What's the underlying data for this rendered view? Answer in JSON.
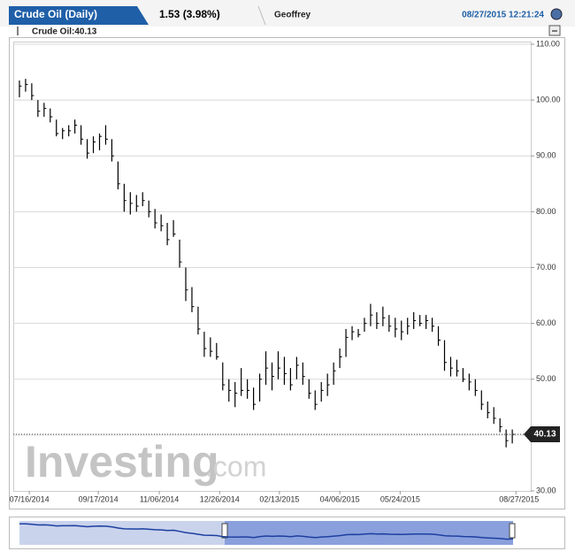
{
  "chart_data": {
    "type": "ohlc",
    "title": "Crude Oil (Daily)",
    "change": "1.53 (3.98%)",
    "user": "Geoffrey",
    "timestamp": "08/27/2015 12:21:24",
    "legend": "Crude Oil:40.13",
    "last_price": 40.13,
    "watermark": [
      "Investing",
      ".com"
    ],
    "color": "#000000",
    "grid": true,
    "xlim": [
      -1,
      83
    ],
    "ylim": [
      30,
      110
    ],
    "yticks": [
      {
        "value": 30,
        "label": "30.00"
      },
      {
        "value": 40,
        "label": "40.00"
      },
      {
        "value": 50,
        "label": "50.00"
      },
      {
        "value": 60,
        "label": "60.00"
      },
      {
        "value": 70,
        "label": "70.00"
      },
      {
        "value": 80,
        "label": "80.00"
      },
      {
        "value": 90,
        "label": "90.00"
      },
      {
        "value": 100,
        "label": "100.00"
      },
      {
        "value": 110,
        "label": "110.00"
      }
    ],
    "xticks": [
      {
        "value": 1.6,
        "label": "07/16/2014"
      },
      {
        "value": 12.8,
        "label": "09/17/2014"
      },
      {
        "value": 22.7,
        "label": "11/06/2014"
      },
      {
        "value": 32.5,
        "label": "12/26/2014"
      },
      {
        "value": 42.2,
        "label": "02/13/2015"
      },
      {
        "value": 52,
        "label": "04/06/2015"
      },
      {
        "value": 61.8,
        "label": "05/24/2015"
      },
      {
        "value": 80.6,
        "label": "08/27/2015"
      }
    ],
    "high": [
      103.5,
      103.8,
      103,
      100,
      99.5,
      98.5,
      96.5,
      95,
      95.5,
      96.5,
      95.5,
      93,
      93.5,
      94,
      95.5,
      93,
      89,
      85,
      83.5,
      83,
      83.5,
      82,
      80.5,
      79.5,
      78,
      78.5,
      75,
      70,
      66.5,
      63,
      58.5,
      57.5,
      56.5,
      53,
      50,
      49.5,
      52,
      50,
      48.5,
      51,
      55,
      53,
      55,
      54,
      52,
      54,
      53,
      50,
      48,
      49.5,
      51,
      53,
      55.5,
      59,
      59.5,
      59,
      61,
      63.5,
      62,
      63,
      61.5,
      61,
      60.5,
      61,
      62,
      61.5,
      61.5,
      61,
      59.5,
      57,
      54,
      53.5,
      52,
      51,
      50,
      48,
      46,
      45,
      43,
      41,
      41
    ],
    "low": [
      100.5,
      101.5,
      100,
      97,
      97,
      96,
      93.5,
      93,
      93.5,
      94,
      92,
      89.5,
      90.5,
      91,
      92,
      89,
      84,
      80,
      79.5,
      80,
      81,
      79,
      77,
      76.5,
      74,
      75.5,
      70,
      64,
      62,
      58,
      54,
      54,
      53.5,
      48,
      46,
      45,
      47,
      46.5,
      44.5,
      46,
      49,
      48,
      50,
      49,
      48,
      50,
      49,
      46.5,
      44.5,
      46,
      47,
      49,
      52,
      54,
      57,
      57.5,
      58.5,
      59.5,
      59,
      59.5,
      58.5,
      57.5,
      57,
      58,
      59,
      59.5,
      59,
      58.5,
      56,
      51.5,
      50.5,
      50.5,
      49.5,
      48,
      47,
      44.5,
      43,
      42,
      40.5,
      37.8,
      38.5
    ],
    "close": [
      102.5,
      102.8,
      100.8,
      98,
      98.5,
      97,
      94,
      94.5,
      94.5,
      95.5,
      93,
      90.5,
      92.5,
      93.5,
      93,
      90,
      85,
      82,
      81.5,
      81,
      82,
      80,
      78,
      77.5,
      75,
      76,
      71,
      66,
      63,
      59,
      55.5,
      55,
      54,
      49,
      48,
      47.5,
      48,
      48,
      45.5,
      50,
      52,
      50.5,
      52,
      51,
      49,
      52.5,
      50.5,
      47.5,
      45.5,
      48,
      49,
      51.5,
      54,
      57.5,
      58.5,
      58,
      60,
      61.5,
      60,
      61,
      59.5,
      59,
      58.5,
      59.5,
      60.5,
      60,
      60.5,
      59.5,
      57,
      53,
      52,
      51.5,
      50,
      49.5,
      48,
      45.5,
      44,
      43,
      41.5,
      39,
      40.13
    ]
  }
}
